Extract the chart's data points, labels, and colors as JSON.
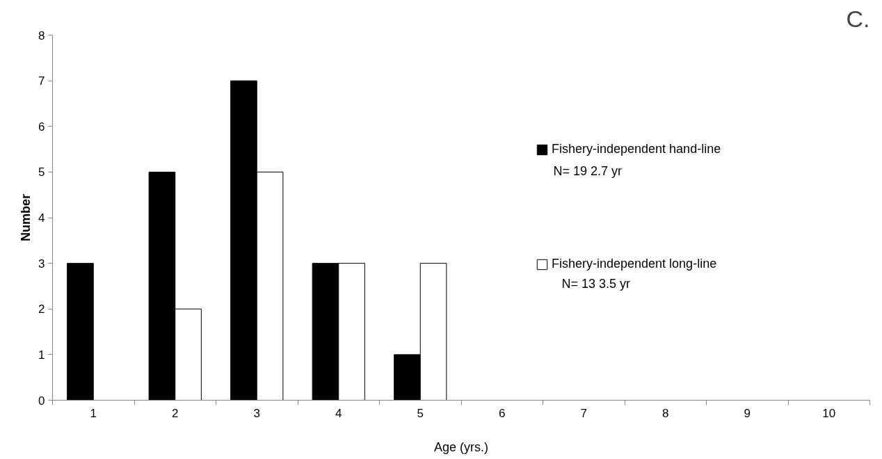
{
  "chart_data": {
    "type": "bar",
    "title": "C.",
    "xlabel": "Age (yrs.)",
    "ylabel": "Number",
    "categories": [
      "1",
      "2",
      "3",
      "4",
      "5",
      "6",
      "7",
      "8",
      "9",
      "10"
    ],
    "series": [
      {
        "name": "Fishery-independent hand-line",
        "color": "#000000",
        "values": [
          3,
          5,
          7,
          3,
          1,
          0,
          0,
          0,
          0,
          0
        ]
      },
      {
        "name": "Fishery-independent long-line",
        "color": "#ffffff",
        "values": [
          0,
          2,
          5,
          3,
          3,
          0,
          0,
          0,
          0,
          0
        ]
      }
    ],
    "annotations": [
      "N= 19    2.7 yr",
      "N= 13    3.5 yr"
    ],
    "ylim": [
      0,
      8
    ],
    "yticks": [
      0,
      1,
      2,
      3,
      4,
      5,
      6,
      7,
      8
    ],
    "grid": false,
    "legend": "right"
  }
}
